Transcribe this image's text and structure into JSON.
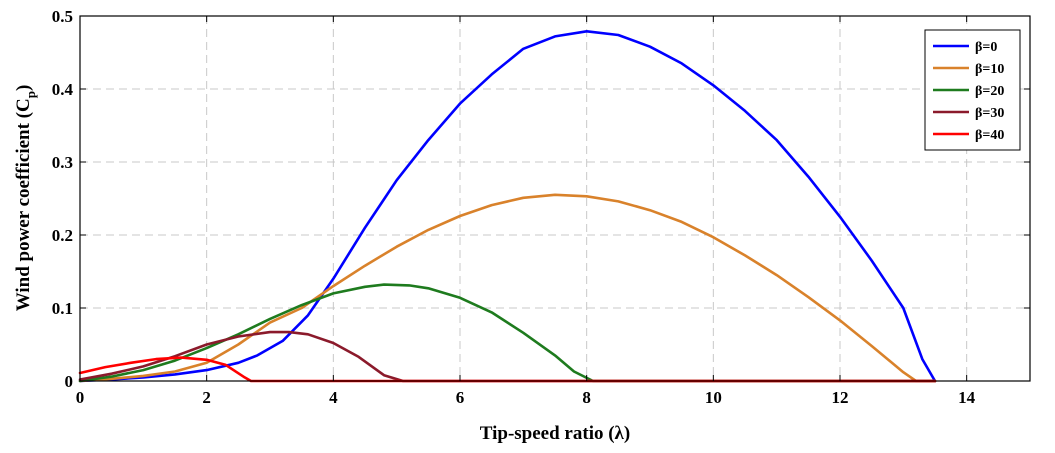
{
  "chart_data": {
    "type": "line",
    "title": "",
    "xlabel": "Tip-speed ratio (λ)",
    "ylabel_main": "Wind power coefficient (C",
    "ylabel_sub": "p",
    "ylabel_end": ")",
    "xlim": [
      0,
      15
    ],
    "ylim": [
      0,
      0.5
    ],
    "xticks": [
      0,
      2,
      4,
      6,
      8,
      10,
      12,
      14
    ],
    "xtick_labels": [
      "0",
      "2",
      "4",
      "6",
      "8",
      "10",
      "12",
      "14"
    ],
    "yticks": [
      0,
      0.1,
      0.2,
      0.3,
      0.4,
      0.5
    ],
    "ytick_labels": [
      "0",
      "0.1",
      "0.2",
      "0.3",
      "0.4",
      "0.5"
    ],
    "grid": true,
    "legend_position": "top-right",
    "series": [
      {
        "name": "β=0",
        "color": "#0000ff",
        "x": [
          0,
          0.5,
          1,
          1.5,
          2,
          2.5,
          2.8,
          3.2,
          3.6,
          4,
          4.5,
          5,
          5.5,
          6,
          6.5,
          7,
          7.5,
          8,
          8.5,
          9,
          9.5,
          10,
          10.5,
          11,
          11.5,
          12,
          12.5,
          13,
          13.3,
          13.5
        ],
        "y": [
          0,
          0.002,
          0.005,
          0.009,
          0.015,
          0.025,
          0.035,
          0.055,
          0.09,
          0.14,
          0.21,
          0.275,
          0.33,
          0.38,
          0.42,
          0.455,
          0.472,
          0.479,
          0.474,
          0.458,
          0.435,
          0.405,
          0.37,
          0.33,
          0.28,
          0.225,
          0.165,
          0.1,
          0.03,
          0
        ]
      },
      {
        "name": "β=10",
        "color": "#d9822b",
        "x": [
          0,
          0.5,
          1,
          1.5,
          2,
          2.5,
          3,
          3.5,
          4,
          4.5,
          5,
          5.5,
          6,
          6.5,
          7,
          7.5,
          8,
          8.5,
          9,
          9.5,
          10,
          10.5,
          11,
          11.5,
          12,
          12.5,
          13,
          13.2,
          13.5
        ],
        "y": [
          0,
          0.003,
          0.007,
          0.013,
          0.025,
          0.05,
          0.08,
          0.1,
          0.13,
          0.158,
          0.184,
          0.207,
          0.226,
          0.241,
          0.251,
          0.255,
          0.253,
          0.246,
          0.234,
          0.218,
          0.197,
          0.172,
          0.145,
          0.115,
          0.083,
          0.048,
          0.012,
          0,
          0
        ]
      },
      {
        "name": "β=20",
        "color": "#1e7b1e",
        "x": [
          0,
          0.5,
          1,
          1.5,
          2,
          2.5,
          3,
          3.5,
          4,
          4.5,
          4.8,
          5.2,
          5.5,
          6,
          6.5,
          7,
          7.5,
          7.8,
          8.1,
          13.5
        ],
        "y": [
          0,
          0.006,
          0.015,
          0.028,
          0.045,
          0.064,
          0.085,
          0.104,
          0.12,
          0.129,
          0.132,
          0.131,
          0.127,
          0.114,
          0.094,
          0.066,
          0.035,
          0.013,
          0,
          0
        ]
      },
      {
        "name": "β=30",
        "color": "#8b1a2b",
        "x": [
          0,
          0.5,
          1,
          1.5,
          2,
          2.5,
          3,
          3.3,
          3.6,
          4,
          4.4,
          4.8,
          5.1,
          13.5
        ],
        "y": [
          0.002,
          0.01,
          0.02,
          0.034,
          0.05,
          0.061,
          0.067,
          0.067,
          0.064,
          0.052,
          0.033,
          0.008,
          0,
          0
        ]
      },
      {
        "name": "β=40",
        "color": "#ff0000",
        "x": [
          0,
          0.4,
          0.8,
          1.2,
          1.6,
          2,
          2.3,
          2.6,
          2.7,
          13.5
        ],
        "y": [
          0.011,
          0.019,
          0.025,
          0.03,
          0.032,
          0.029,
          0.022,
          0.005,
          0,
          0
        ]
      }
    ]
  }
}
